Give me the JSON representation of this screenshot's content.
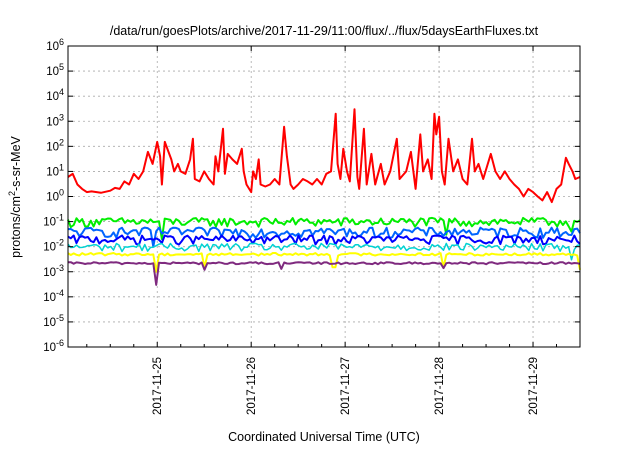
{
  "chart_data": {
    "type": "line",
    "title": "/data/run/goesPlots/archive/2017-11-29/11:00/flux/../flux/5daysEarthFluxes.txt",
    "xlabel": "Coordinated Universal Time (UTC)",
    "ylabel": {
      "base": "protons/cm",
      "sup": "2",
      "rest": "-s-sr-MeV"
    },
    "y_scale": "log",
    "ylim_exp": [
      -6,
      6
    ],
    "xlim": [
      -0.95,
      4.5
    ],
    "x_unit_note": "x values are days relative to 2017-11-25 00:00 UTC tick",
    "x_ticks": [
      {
        "value": 0,
        "label": "2017-11-25"
      },
      {
        "value": 1,
        "label": "2017-11-26"
      },
      {
        "value": 2,
        "label": "2017-11-27"
      },
      {
        "value": 3,
        "label": "2017-11-28"
      },
      {
        "value": 4,
        "label": "2017-11-29"
      }
    ],
    "y_ticks": [
      {
        "exp": -6,
        "label": "10",
        "sup": "-6"
      },
      {
        "exp": -5,
        "label": "10",
        "sup": "-5"
      },
      {
        "exp": -4,
        "label": "10",
        "sup": "-4"
      },
      {
        "exp": -3,
        "label": "10",
        "sup": "-3"
      },
      {
        "exp": -2,
        "label": "10",
        "sup": "-2"
      },
      {
        "exp": -1,
        "label": "10",
        "sup": "-1"
      },
      {
        "exp": 0,
        "label": "10",
        "sup": "0"
      },
      {
        "exp": 1,
        "label": "10",
        "sup": "1"
      },
      {
        "exp": 2,
        "label": "10",
        "sup": "2"
      },
      {
        "exp": 3,
        "label": "10",
        "sup": "3"
      },
      {
        "exp": 4,
        "label": "10",
        "sup": "4"
      },
      {
        "exp": 5,
        "label": "10",
        "sup": "5"
      },
      {
        "exp": 6,
        "label": "10",
        "sup": "6"
      }
    ],
    "grid": true,
    "series": [
      {
        "color": "#ff0000",
        "width": 2,
        "points": [
          [
            -0.95,
            6
          ],
          [
            -0.9,
            8
          ],
          [
            -0.85,
            3
          ],
          [
            -0.8,
            2
          ],
          [
            -0.75,
            1.5
          ],
          [
            -0.7,
            1.6
          ],
          [
            -0.6,
            1.4
          ],
          [
            -0.5,
            1.7
          ],
          [
            -0.45,
            2.2
          ],
          [
            -0.4,
            2
          ],
          [
            -0.35,
            4
          ],
          [
            -0.3,
            3
          ],
          [
            -0.25,
            8
          ],
          [
            -0.2,
            5
          ],
          [
            -0.15,
            10
          ],
          [
            -0.1,
            60
          ],
          [
            -0.05,
            20
          ],
          [
            0,
            150
          ],
          [
            0.03,
            40
          ],
          [
            0.05,
            3
          ],
          [
            0.08,
            150
          ],
          [
            0.12,
            60
          ],
          [
            0.15,
            30
          ],
          [
            0.18,
            10
          ],
          [
            0.22,
            20
          ],
          [
            0.25,
            10
          ],
          [
            0.3,
            8
          ],
          [
            0.35,
            30
          ],
          [
            0.38,
            200
          ],
          [
            0.4,
            5
          ],
          [
            0.45,
            4
          ],
          [
            0.5,
            10
          ],
          [
            0.55,
            5
          ],
          [
            0.6,
            3
          ],
          [
            0.62,
            40
          ],
          [
            0.65,
            10
          ],
          [
            0.7,
            500
          ],
          [
            0.72,
            8
          ],
          [
            0.75,
            50
          ],
          [
            0.8,
            30
          ],
          [
            0.85,
            20
          ],
          [
            0.9,
            80
          ],
          [
            0.92,
            10
          ],
          [
            0.95,
            3
          ],
          [
            1.0,
            1.5
          ],
          [
            1.02,
            10
          ],
          [
            1.05,
            5
          ],
          [
            1.08,
            30
          ],
          [
            1.1,
            3
          ],
          [
            1.15,
            2.5
          ],
          [
            1.2,
            3
          ],
          [
            1.25,
            5
          ],
          [
            1.3,
            3
          ],
          [
            1.35,
            600
          ],
          [
            1.38,
            40
          ],
          [
            1.42,
            3
          ],
          [
            1.45,
            2
          ],
          [
            1.5,
            3
          ],
          [
            1.55,
            5
          ],
          [
            1.6,
            4
          ],
          [
            1.65,
            3
          ],
          [
            1.7,
            5
          ],
          [
            1.75,
            3
          ],
          [
            1.8,
            8
          ],
          [
            1.85,
            10
          ],
          [
            1.9,
            2000
          ],
          [
            1.92,
            20
          ],
          [
            1.95,
            5
          ],
          [
            1.98,
            80
          ],
          [
            2.02,
            10
          ],
          [
            2.05,
            4
          ],
          [
            2.1,
            3000
          ],
          [
            2.13,
            6
          ],
          [
            2.15,
            2
          ],
          [
            2.2,
            500
          ],
          [
            2.23,
            3
          ],
          [
            2.28,
            50
          ],
          [
            2.32,
            3
          ],
          [
            2.38,
            20
          ],
          [
            2.42,
            3
          ],
          [
            2.48,
            10
          ],
          [
            2.55,
            200
          ],
          [
            2.58,
            5
          ],
          [
            2.65,
            10
          ],
          [
            2.7,
            60
          ],
          [
            2.75,
            2
          ],
          [
            2.8,
            300
          ],
          [
            2.83,
            10
          ],
          [
            2.88,
            30
          ],
          [
            2.92,
            5
          ],
          [
            2.95,
            2000
          ],
          [
            2.97,
            300
          ],
          [
            3.0,
            1500
          ],
          [
            3.03,
            10
          ],
          [
            3.06,
            3
          ],
          [
            3.1,
            200
          ],
          [
            3.15,
            10
          ],
          [
            3.2,
            30
          ],
          [
            3.25,
            5
          ],
          [
            3.3,
            3
          ],
          [
            3.35,
            200
          ],
          [
            3.38,
            10
          ],
          [
            3.42,
            20
          ],
          [
            3.47,
            5
          ],
          [
            3.55,
            50
          ],
          [
            3.6,
            10
          ],
          [
            3.65,
            5
          ],
          [
            3.7,
            10
          ],
          [
            3.75,
            5
          ],
          [
            3.8,
            3
          ],
          [
            3.85,
            2
          ],
          [
            3.9,
            1
          ],
          [
            3.95,
            2
          ],
          [
            4.0,
            1.5
          ],
          [
            4.05,
            1
          ],
          [
            4.1,
            0.7
          ],
          [
            4.15,
            1.5
          ],
          [
            4.2,
            0.6
          ],
          [
            4.25,
            2
          ],
          [
            4.3,
            3
          ],
          [
            4.35,
            35
          ],
          [
            4.38,
            20
          ],
          [
            4.42,
            10
          ],
          [
            4.45,
            5
          ],
          [
            4.5,
            6
          ]
        ]
      },
      {
        "color": "#00ee00",
        "width": 2,
        "baseline": 0.1,
        "spread": 0.5,
        "dips": [
          [
            0.05,
            0.02
          ],
          [
            3.08,
            0.03
          ],
          [
            4.4,
            0.04
          ]
        ]
      },
      {
        "color": "#0064ff",
        "width": 2,
        "baseline": 0.04,
        "spread": 0.55,
        "dips": [
          [
            -0.05,
            0.01
          ]
        ]
      },
      {
        "color": "#0000ff",
        "width": 2,
        "baseline": 0.02,
        "spread": 0.5,
        "dips": []
      },
      {
        "color": "#00d2d2",
        "width": 1.5,
        "baseline": 0.01,
        "spread": 0.45,
        "dips": [
          [
            4.4,
            0.003
          ]
        ]
      },
      {
        "color": "#ffff00",
        "width": 2,
        "baseline": 0.005,
        "spread": 0.15,
        "dips": [
          [
            0.0,
            0.001
          ],
          [
            0.5,
            0.0015
          ],
          [
            1.88,
            0.0015
          ],
          [
            3.05,
            0.0015
          ],
          [
            4.5,
            0.0012
          ]
        ]
      },
      {
        "color": "#7f2a7f",
        "width": 2,
        "baseline": 0.0022,
        "spread": 0.12,
        "dips": [
          [
            0.0,
            0.0003
          ],
          [
            0.5,
            0.0012
          ],
          [
            1.32,
            0.0013
          ],
          [
            3.05,
            0.0014
          ]
        ]
      }
    ]
  }
}
